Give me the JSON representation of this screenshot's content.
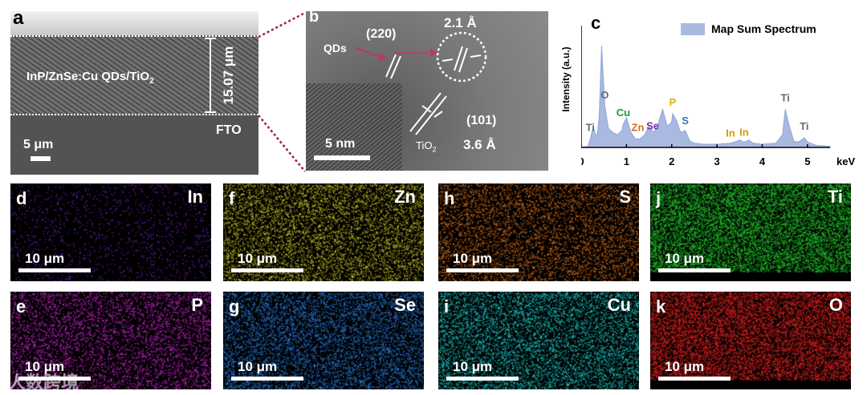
{
  "panels": {
    "a": {
      "letter": "a",
      "layer_label": "InP/ZnSe:Cu  QDs/TiO",
      "layer_sub": "2",
      "thickness": "15.07 μm",
      "substrate": "FTO",
      "scalebar": "5 μm"
    },
    "b": {
      "letter": "b",
      "plane_220": "(220)",
      "d_220": "2.1 Å",
      "qds": "QDs",
      "plane_101": "(101)",
      "d_101": "3.6 Å",
      "tio2": "TiO",
      "tio2_sub": "2",
      "scalebar": "5 nm"
    },
    "c": {
      "letter": "c",
      "legend": "Map Sum Spectrum",
      "ylabel": "Intensity (a.u.)",
      "xunit": "keV"
    },
    "maps": [
      {
        "letter": "d",
        "element": "In",
        "scalebar": "10 μm",
        "color": "#7a22c8"
      },
      {
        "letter": "e",
        "element": "P",
        "scalebar": "10 μm",
        "color": "#c227c2"
      },
      {
        "letter": "f",
        "element": "Zn",
        "scalebar": "10 μm",
        "color": "#c9c227"
      },
      {
        "letter": "g",
        "element": "Se",
        "scalebar": "10 μm",
        "color": "#2a7ad8"
      },
      {
        "letter": "h",
        "element": "S",
        "scalebar": "10 μm",
        "color": "#d8701e"
      },
      {
        "letter": "i",
        "element": "Cu",
        "scalebar": "10 μm",
        "color": "#1ec8c8"
      },
      {
        "letter": "j",
        "element": "Ti",
        "scalebar": "10 μm",
        "color": "#22c02a"
      },
      {
        "letter": "k",
        "element": "O",
        "scalebar": "10 μm",
        "color": "#d82020"
      }
    ],
    "watermark": "人数跨境"
  },
  "chart_data": {
    "type": "line",
    "xlabel": "keV",
    "ylabel": "Intensity (a.u.)",
    "xlim": [
      0,
      5.5
    ],
    "xticks": [
      0,
      1,
      2,
      3,
      4,
      5
    ],
    "series": [
      {
        "name": "Map Sum Spectrum",
        "x": [
          0.0,
          0.15,
          0.2,
          0.27,
          0.3,
          0.35,
          0.4,
          0.45,
          0.52,
          0.6,
          0.7,
          0.8,
          0.9,
          0.93,
          1.0,
          1.1,
          1.2,
          1.3,
          1.4,
          1.5,
          1.6,
          1.7,
          1.8,
          1.9,
          2.0,
          2.02,
          2.1,
          2.2,
          2.3,
          2.4,
          2.5,
          2.7,
          3.0,
          3.3,
          3.45,
          3.5,
          3.6,
          3.7,
          3.8,
          4.0,
          4.3,
          4.45,
          4.51,
          4.6,
          4.7,
          4.8,
          4.93,
          5.0,
          5.2,
          5.5
        ],
        "y": [
          0,
          1,
          8,
          20,
          14,
          10,
          30,
          96,
          40,
          18,
          14,
          12,
          16,
          22,
          28,
          14,
          8,
          8,
          12,
          20,
          14,
          22,
          36,
          20,
          24,
          32,
          26,
          14,
          16,
          6,
          4,
          3,
          3,
          4,
          6,
          7,
          5,
          7,
          4,
          3,
          4,
          12,
          36,
          20,
          6,
          5,
          9,
          5,
          2,
          1
        ]
      }
    ],
    "peak_labels": [
      {
        "label": "O",
        "x": 0.52,
        "color": "#6b6b6b"
      },
      {
        "label": "Ti",
        "x": 0.2,
        "color": "#6b6b6b"
      },
      {
        "label": "Cu",
        "x": 0.93,
        "color": "#1a9a3a"
      },
      {
        "label": "Zn",
        "x": 1.25,
        "color": "#d0701e"
      },
      {
        "label": "Se",
        "x": 1.58,
        "color": "#7b2fb5"
      },
      {
        "label": "P",
        "x": 2.02,
        "color": "#e0b400"
      },
      {
        "label": "S",
        "x": 2.3,
        "color": "#2a7ab8"
      },
      {
        "label": "In",
        "x": 3.3,
        "color": "#d49b00"
      },
      {
        "label": "In",
        "x": 3.6,
        "color": "#d49b00"
      },
      {
        "label": "Ti",
        "x": 4.51,
        "color": "#6b6b6b"
      },
      {
        "label": "Ti",
        "x": 4.93,
        "color": "#6b6b6b"
      }
    ]
  }
}
